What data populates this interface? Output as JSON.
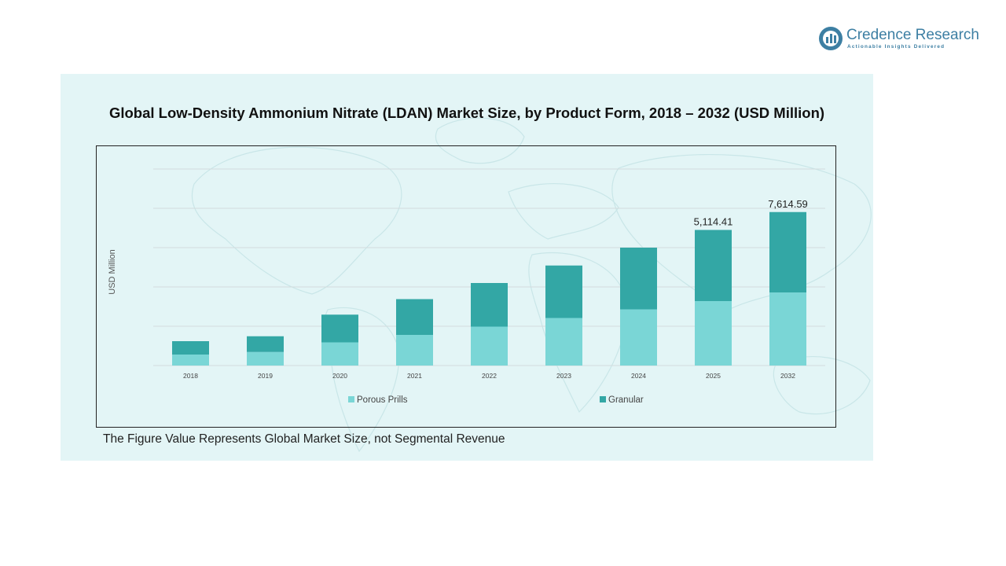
{
  "brand": {
    "name": "Credence Research",
    "tagline": "Actionable Insights Delivered",
    "icon": "credence-logo-icon",
    "color": "#3d7fa3"
  },
  "note": "The Figure Value Represents Global Market Size, not Segmental Revenue",
  "chart_data": {
    "type": "bar",
    "stacked": true,
    "title": "Global Low-Density Ammonium Nitrate (LDAN) Market Size, by Product Form, 2018 – 2032 (USD Million)",
    "ylabel": "USD Million",
    "xlabel": "",
    "ylim": [
      0,
      10000
    ],
    "grid": true,
    "legend_position": "bottom",
    "categories": [
      "2018",
      "2019",
      "2020",
      "2021",
      "2022",
      "2023",
      "2024",
      "2025",
      "2032"
    ],
    "series": [
      {
        "name": "Porous Prills",
        "color": "#7ad6d6",
        "values": [
          560,
          690,
          1180,
          1560,
          1980,
          2420,
          2860,
          3280,
          3720
        ]
      },
      {
        "name": "Granular",
        "color": "#33a7a5",
        "values": [
          680,
          800,
          1410,
          1820,
          2220,
          2670,
          3140,
          3620,
          4090
        ]
      }
    ],
    "data_labels": [
      {
        "category": "2025",
        "text": "5,114.41"
      },
      {
        "category": "2032",
        "text": "7,614.59"
      }
    ]
  }
}
